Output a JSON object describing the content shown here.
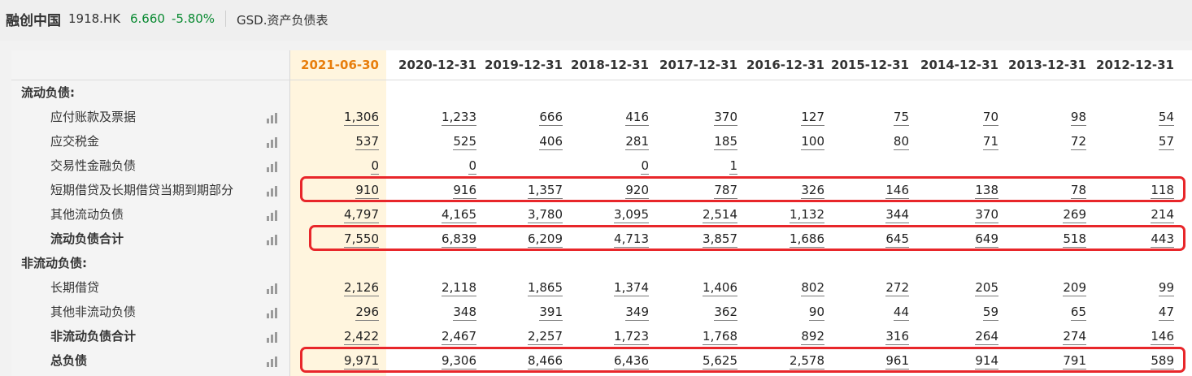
{
  "header": {
    "company": "融创中国",
    "code": "1918.HK",
    "price": "6.660",
    "change": "-5.80%",
    "report": "GSD.资产负债表"
  },
  "colors": {
    "active_year": "#e87e0c",
    "price": "#0a8a32",
    "highlight_box": "#e8262a"
  },
  "icons": {
    "chart_icon": "bar-chart-icon"
  },
  "years": [
    "2021-06-30",
    "2020-12-31",
    "2019-12-31",
    "2018-12-31",
    "2017-12-31",
    "2016-12-31",
    "2015-12-31",
    "2014-12-31",
    "2013-12-31",
    "2012-12-31"
  ],
  "rows": [
    {
      "label": "流动负债:",
      "type": "section",
      "values": [
        "",
        "",
        "",
        "",
        "",
        "",
        "",
        "",
        "",
        ""
      ]
    },
    {
      "label": "应付账款及票据",
      "type": "item",
      "values": [
        "1,306",
        "1,233",
        "666",
        "416",
        "370",
        "127",
        "75",
        "70",
        "98",
        "54"
      ]
    },
    {
      "label": "应交税金",
      "type": "item",
      "values": [
        "537",
        "525",
        "406",
        "281",
        "185",
        "100",
        "80",
        "71",
        "72",
        "57"
      ]
    },
    {
      "label": "交易性金融负债",
      "type": "item",
      "values": [
        "0",
        "0",
        "",
        "0",
        "1",
        "",
        "",
        "",
        "",
        ""
      ]
    },
    {
      "label": "短期借贷及长期借贷当期到期部分",
      "type": "item",
      "highlight": true,
      "values": [
        "910",
        "916",
        "1,357",
        "920",
        "787",
        "326",
        "146",
        "138",
        "78",
        "118"
      ]
    },
    {
      "label": "其他流动负债",
      "type": "item",
      "values": [
        "4,797",
        "4,165",
        "3,780",
        "3,095",
        "2,514",
        "1,132",
        "344",
        "370",
        "269",
        "214"
      ]
    },
    {
      "label": "流动负债合计",
      "type": "total",
      "highlight": true,
      "values": [
        "7,550",
        "6,839",
        "6,209",
        "4,713",
        "3,857",
        "1,686",
        "645",
        "649",
        "518",
        "443"
      ]
    },
    {
      "label": "非流动负债:",
      "type": "section",
      "values": [
        "",
        "",
        "",
        "",
        "",
        "",
        "",
        "",
        "",
        ""
      ]
    },
    {
      "label": "长期借贷",
      "type": "item",
      "values": [
        "2,126",
        "2,118",
        "1,865",
        "1,374",
        "1,406",
        "802",
        "272",
        "205",
        "209",
        "99"
      ]
    },
    {
      "label": "其他非流动负债",
      "type": "item",
      "values": [
        "296",
        "348",
        "391",
        "349",
        "362",
        "90",
        "44",
        "59",
        "65",
        "47"
      ]
    },
    {
      "label": "非流动负债合计",
      "type": "total",
      "values": [
        "2,422",
        "2,467",
        "2,257",
        "1,723",
        "1,768",
        "892",
        "316",
        "264",
        "274",
        "146"
      ]
    },
    {
      "label": "总负债",
      "type": "total",
      "highlight": true,
      "values": [
        "9,971",
        "9,306",
        "8,466",
        "6,436",
        "5,625",
        "2,578",
        "961",
        "914",
        "791",
        "589"
      ]
    }
  ]
}
